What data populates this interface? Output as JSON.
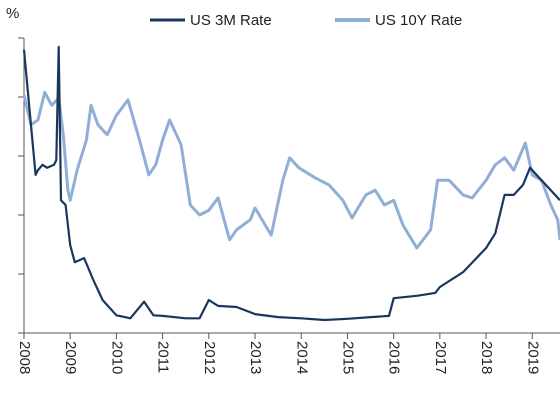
{
  "chart_data": {
    "type": "line",
    "y_label": "%",
    "xlim": [
      2008,
      2019.6
    ],
    "xticks": [
      2008,
      2009,
      2010,
      2011,
      2012,
      2013,
      2014,
      2015,
      2016,
      2017,
      2018,
      2019
    ],
    "ylim": [
      0,
      5
    ],
    "yticks": [
      0,
      1,
      2,
      3,
      4,
      5
    ],
    "legend": "top",
    "series": [
      {
        "name": "US 3M Rate",
        "color": "#1b365d",
        "x": [
          2008.0,
          2008.25,
          2008.3,
          2008.4,
          2008.5,
          2008.65,
          2008.7,
          2008.75,
          2008.8,
          2008.9,
          2009.0,
          2009.1,
          2009.3,
          2009.5,
          2009.7,
          2010.0,
          2010.3,
          2010.6,
          2010.8,
          2011.0,
          2011.5,
          2011.8,
          2012.0,
          2012.2,
          2012.6,
          2013.0,
          2013.5,
          2014.0,
          2014.5,
          2015.0,
          2015.5,
          2015.9,
          2016.0,
          2016.5,
          2016.9,
          2017.0,
          2017.5,
          2018.0,
          2018.2,
          2018.4,
          2018.6,
          2018.8,
          2018.95,
          2019.2,
          2019.4,
          2019.6
        ],
        "values": [
          4.8,
          2.68,
          2.76,
          2.85,
          2.8,
          2.85,
          2.93,
          4.85,
          2.25,
          2.17,
          1.49,
          1.2,
          1.27,
          0.9,
          0.56,
          0.3,
          0.25,
          0.53,
          0.3,
          0.29,
          0.25,
          0.25,
          0.56,
          0.46,
          0.44,
          0.32,
          0.27,
          0.25,
          0.22,
          0.24,
          0.27,
          0.29,
          0.59,
          0.63,
          0.68,
          0.78,
          1.03,
          1.44,
          1.69,
          2.34,
          2.34,
          2.51,
          2.8,
          2.59,
          2.42,
          2.25
        ]
      },
      {
        "name": "US 10Y Rate",
        "color": "#91aed6",
        "x": [
          2008.0,
          2008.15,
          2008.3,
          2008.45,
          2008.6,
          2008.75,
          2008.85,
          2008.95,
          2009.0,
          2009.15,
          2009.35,
          2009.45,
          2009.6,
          2009.8,
          2010.0,
          2010.25,
          2010.5,
          2010.7,
          2010.85,
          2011.0,
          2011.15,
          2011.4,
          2011.6,
          2011.8,
          2012.0,
          2012.2,
          2012.45,
          2012.6,
          2012.9,
          2013.0,
          2013.35,
          2013.6,
          2013.75,
          2013.95,
          2014.3,
          2014.6,
          2014.9,
          2015.1,
          2015.4,
          2015.6,
          2015.8,
          2016.0,
          2016.2,
          2016.5,
          2016.8,
          2016.95,
          2017.2,
          2017.5,
          2017.7,
          2018.0,
          2018.2,
          2018.4,
          2018.6,
          2018.85,
          2019.0,
          2019.2,
          2019.4,
          2019.55,
          2019.6
        ],
        "values": [
          4.03,
          3.53,
          3.61,
          4.08,
          3.86,
          3.98,
          3.36,
          2.42,
          2.25,
          2.76,
          3.27,
          3.86,
          3.53,
          3.36,
          3.69,
          3.95,
          3.27,
          2.68,
          2.85,
          3.27,
          3.61,
          3.19,
          2.17,
          2.0,
          2.08,
          2.29,
          1.58,
          1.75,
          1.92,
          2.12,
          1.66,
          2.59,
          2.97,
          2.8,
          2.63,
          2.51,
          2.25,
          1.95,
          2.34,
          2.42,
          2.17,
          2.25,
          1.83,
          1.44,
          1.75,
          2.59,
          2.59,
          2.34,
          2.29,
          2.59,
          2.85,
          2.97,
          2.76,
          3.22,
          2.68,
          2.59,
          2.17,
          1.92,
          1.58
        ]
      }
    ]
  }
}
